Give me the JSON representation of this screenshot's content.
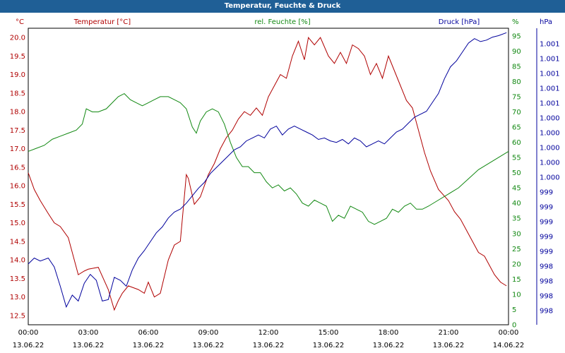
{
  "window": {
    "title": "Temperatur, Feuchte & Druck"
  },
  "chart_data": {
    "type": "line",
    "title": "Temperatur, Feuchte & Druck",
    "x_ticks": [
      {
        "time": "00:00",
        "date": "13.06.22"
      },
      {
        "time": "03:00",
        "date": "13.06.22"
      },
      {
        "time": "06:00",
        "date": "13.06.22"
      },
      {
        "time": "09:00",
        "date": "13.06.22"
      },
      {
        "time": "12:00",
        "date": "13.06.22"
      },
      {
        "time": "15:00",
        "date": "13.06.22"
      },
      {
        "time": "18:00",
        "date": "13.06.22"
      },
      {
        "time": "21:00",
        "date": "13.06.22"
      },
      {
        "time": "00:00",
        "date": "14.06.22"
      }
    ],
    "x_unit": "hours",
    "xlim": [
      0,
      24
    ],
    "axes": {
      "temperature": {
        "label": "Temperatur [°C]",
        "unit": "°C",
        "color": "#b00000",
        "ylim": [
          12.25,
          20.25
        ],
        "ticks": [
          "12.5",
          "13.0",
          "13.5",
          "14.0",
          "14.5",
          "15.0",
          "15.5",
          "16.0",
          "16.5",
          "17.0",
          "17.5",
          "18.0",
          "18.5",
          "19.0",
          "19.5",
          "20.0"
        ]
      },
      "humidity": {
        "label": "rel. Feuchte [%]",
        "unit": "%",
        "color": "#118811",
        "ylim": [
          0,
          97.5
        ],
        "ticks": [
          "0",
          "5",
          "10",
          "15",
          "20",
          "25",
          "30",
          "35",
          "40",
          "45",
          "50",
          "55",
          "60",
          "65",
          "70",
          "75",
          "80",
          "85",
          "90",
          "95"
        ]
      },
      "pressure": {
        "label": "Druck [hPa]",
        "unit": "hPa",
        "color": "#00009c",
        "ticks": [
          "998",
          "998",
          "998",
          "998",
          "999",
          "999",
          "999",
          "999",
          "999",
          "1.000",
          "1.000",
          "1.000",
          "1.000",
          "1.000",
          "1.001",
          "1.001",
          "1.001",
          "1.001",
          "1.001"
        ]
      }
    },
    "series": [
      {
        "name": "Temperatur [°C]",
        "axis": "temperature",
        "color": "#b00000",
        "x": [
          0,
          0.3,
          0.6,
          1,
          1.3,
          1.6,
          2,
          2.5,
          2.8,
          3,
          3.5,
          4,
          4.3,
          4.5,
          4.7,
          5,
          5.5,
          5.8,
          6,
          6.3,
          6.6,
          7,
          7.3,
          7.6,
          7.9,
          8,
          8.3,
          8.6,
          9,
          9.3,
          9.6,
          9.9,
          10.2,
          10.5,
          10.8,
          11.1,
          11.4,
          11.7,
          12,
          12.3,
          12.6,
          12.9,
          13.2,
          13.5,
          13.8,
          14,
          14.3,
          14.6,
          15,
          15.3,
          15.6,
          15.9,
          16.2,
          16.5,
          16.8,
          17.1,
          17.4,
          17.7,
          18,
          18.3,
          18.6,
          18.9,
          19.2,
          19.5,
          19.8,
          20.1,
          20.5,
          21,
          21.3,
          21.6,
          21.9,
          22.2,
          22.5,
          22.8,
          23,
          23.3,
          23.6,
          23.9
        ],
        "values": [
          16.35,
          15.9,
          15.6,
          15.25,
          15.0,
          14.9,
          14.6,
          13.6,
          13.7,
          13.75,
          13.8,
          13.2,
          12.65,
          12.9,
          13.1,
          13.3,
          13.2,
          13.1,
          13.4,
          13.0,
          13.1,
          14.0,
          14.4,
          14.5,
          16.3,
          16.2,
          15.5,
          15.7,
          16.3,
          16.6,
          17.0,
          17.3,
          17.5,
          17.8,
          18.0,
          17.9,
          18.1,
          17.9,
          18.4,
          18.7,
          19.0,
          18.9,
          19.5,
          19.9,
          19.4,
          20.0,
          19.8,
          20.0,
          19.5,
          19.3,
          19.6,
          19.3,
          19.8,
          19.7,
          19.5,
          19.0,
          19.3,
          18.9,
          19.5,
          19.1,
          18.7,
          18.3,
          18.1,
          17.5,
          16.9,
          16.4,
          15.9,
          15.6,
          15.3,
          15.1,
          14.8,
          14.5,
          14.2,
          14.1,
          13.9,
          13.6,
          13.4,
          13.3
        ]
      },
      {
        "name": "rel. Feuchte [%]",
        "axis": "humidity",
        "color": "#118811",
        "x": [
          0,
          0.4,
          0.8,
          1.2,
          1.6,
          2,
          2.4,
          2.7,
          2.9,
          3.2,
          3.5,
          3.9,
          4.2,
          4.5,
          4.8,
          5.1,
          5.4,
          5.7,
          6.0,
          6.3,
          6.6,
          7.0,
          7.3,
          7.6,
          7.9,
          8.2,
          8.4,
          8.6,
          8.9,
          9.2,
          9.5,
          9.8,
          10.1,
          10.4,
          10.7,
          11,
          11.3,
          11.6,
          11.9,
          12.2,
          12.5,
          12.8,
          13.1,
          13.4,
          13.7,
          14,
          14.3,
          14.6,
          14.9,
          15.2,
          15.5,
          15.8,
          16.1,
          16.4,
          16.7,
          17,
          17.3,
          17.6,
          17.9,
          18.2,
          18.5,
          18.8,
          19.1,
          19.4,
          19.7,
          20,
          20.5,
          21,
          21.5,
          22,
          22.5,
          23,
          23.5,
          24
        ],
        "values": [
          57,
          58,
          59,
          61,
          62,
          63,
          64,
          66,
          71,
          70,
          70,
          71,
          73,
          75,
          76,
          74,
          73,
          72,
          73,
          74,
          75,
          75,
          74,
          73,
          71,
          65,
          63,
          67,
          70,
          71,
          70,
          66,
          60,
          55,
          52,
          52,
          50,
          50,
          47,
          45,
          46,
          44,
          45,
          43,
          40,
          39,
          41,
          40,
          39,
          34,
          36,
          35,
          39,
          38,
          37,
          34,
          33,
          34,
          35,
          38,
          37,
          39,
          40,
          38,
          38,
          39,
          41,
          43,
          45,
          48,
          51,
          53,
          55,
          57
        ]
      },
      {
        "name": "Druck [hPa]",
        "axis": "pressure",
        "color": "#00009c",
        "x": [
          0,
          0.3,
          0.6,
          1,
          1.3,
          1.6,
          1.9,
          2.2,
          2.5,
          2.8,
          3.1,
          3.4,
          3.7,
          4,
          4.3,
          4.6,
          4.9,
          5.2,
          5.5,
          5.8,
          6.1,
          6.4,
          6.7,
          7,
          7.3,
          7.6,
          7.9,
          8.2,
          8.5,
          8.8,
          9.1,
          9.4,
          9.7,
          10,
          10.3,
          10.6,
          10.9,
          11.2,
          11.5,
          11.8,
          12.1,
          12.4,
          12.7,
          13,
          13.3,
          13.6,
          13.9,
          14.2,
          14.5,
          14.8,
          15.1,
          15.4,
          15.7,
          16,
          16.3,
          16.6,
          16.9,
          17.2,
          17.5,
          17.8,
          18.1,
          18.4,
          18.7,
          19,
          19.3,
          19.6,
          19.9,
          20.2,
          20.5,
          20.8,
          21.1,
          21.4,
          21.7,
          22,
          22.3,
          22.6,
          22.9,
          23.2,
          23.5,
          23.9
        ],
        "pixel_note_removed": true,
        "values_norm": [
          0.205,
          0.225,
          0.215,
          0.225,
          0.195,
          0.13,
          0.06,
          0.1,
          0.08,
          0.14,
          0.17,
          0.15,
          0.08,
          0.085,
          0.16,
          0.15,
          0.13,
          0.185,
          0.225,
          0.25,
          0.28,
          0.31,
          0.33,
          0.36,
          0.38,
          0.39,
          0.41,
          0.435,
          0.46,
          0.48,
          0.51,
          0.53,
          0.55,
          0.57,
          0.59,
          0.6,
          0.62,
          0.63,
          0.64,
          0.63,
          0.66,
          0.67,
          0.64,
          0.66,
          0.67,
          0.66,
          0.65,
          0.64,
          0.625,
          0.63,
          0.62,
          0.615,
          0.625,
          0.61,
          0.63,
          0.62,
          0.6,
          0.61,
          0.62,
          0.61,
          0.63,
          0.65,
          0.66,
          0.68,
          0.7,
          0.71,
          0.72,
          0.75,
          0.78,
          0.83,
          0.87,
          0.89,
          0.92,
          0.95,
          0.965,
          0.955,
          0.96,
          0.97,
          0.975,
          0.985
        ]
      }
    ],
    "grid": true
  }
}
